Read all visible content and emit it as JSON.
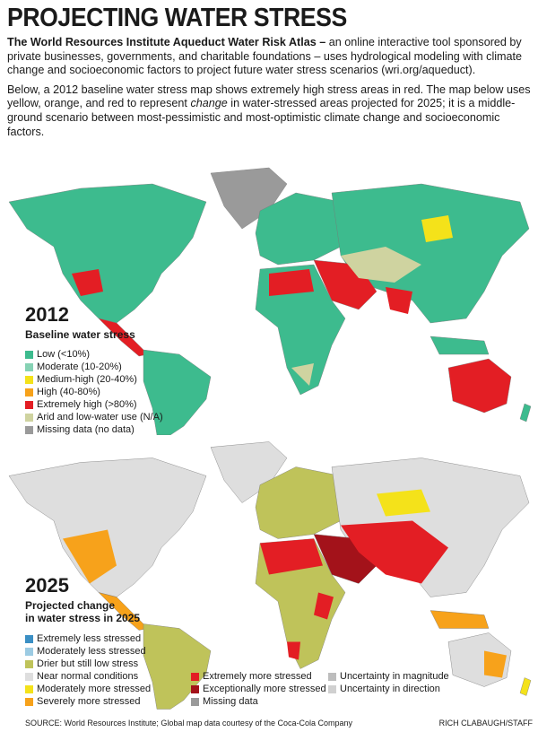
{
  "title": "PROJECTING WATER STRESS",
  "intro": {
    "lead_bold": "The World Resources Institute Aqueduct Water Risk Atlas –",
    "lead_rest": " an online interactive tool sponsored by private businesses, governments, and charitable foundations – uses hydrological modeling with climate change and socioeconomic factors to project future water stress scenarios (wri.org/aqueduct).",
    "p2_a": "Below, a 2012 baseline water stress map shows extremely high stress areas in red. The map below uses yellow, orange, and red to represent ",
    "p2_em": "change",
    "p2_b": " in water-stressed areas projected for 2025; it is a middle-ground scenario between most-pessimistic and most-optimistic climate change and socioeconomic factors."
  },
  "map2012": {
    "year": "2012",
    "subtitle": "Baseline water stress",
    "legend": [
      {
        "label": "Low (<10%)",
        "color": "#3dbb8e"
      },
      {
        "label": "Moderate (10-20%)",
        "color": "#86d2b4"
      },
      {
        "label": "Medium-high (20-40%)",
        "color": "#f4e21a"
      },
      {
        "label": "High (40-80%)",
        "color": "#f7a21b"
      },
      {
        "label": "Extremely high (>80%)",
        "color": "#e31e24"
      },
      {
        "label": "Arid and low-water use (N/A)",
        "color": "#cfd3a0"
      },
      {
        "label": "Missing data (no data)",
        "color": "#9a9a9a"
      }
    ]
  },
  "map2025": {
    "year": "2025",
    "subtitle_line1": "Projected change",
    "subtitle_line2": "in water stress in 2025",
    "legend": [
      {
        "label": "Extremely less stressed",
        "color": "#3b8fc4"
      },
      {
        "label": "Moderately less stressed",
        "color": "#9ccbe3"
      },
      {
        "label": "Drier but still low stress",
        "color": "#bfc35a"
      },
      {
        "label": "Near normal conditions",
        "color": "#dedede"
      },
      {
        "label": "Moderately more stressed",
        "color": "#f4e21a"
      },
      {
        "label": "Severely more stressed",
        "color": "#f7a21b"
      },
      {
        "label": "Extremely more stressed",
        "color": "#e31e24"
      },
      {
        "label": "Exceptionally more stressed",
        "color": "#a3121a"
      },
      {
        "label": "Missing data",
        "color": "#9a9a9a"
      },
      {
        "label": "Uncertainty in magnitude",
        "color": "#bdbdbd"
      },
      {
        "label": "Uncertainty in direction",
        "color": "#d0d0d0"
      }
    ]
  },
  "source": "SOURCE: World Resources Institute; Global map data courtesy of the Coca-Cola Company",
  "credit": "RICH CLABAUGH/STAFF"
}
